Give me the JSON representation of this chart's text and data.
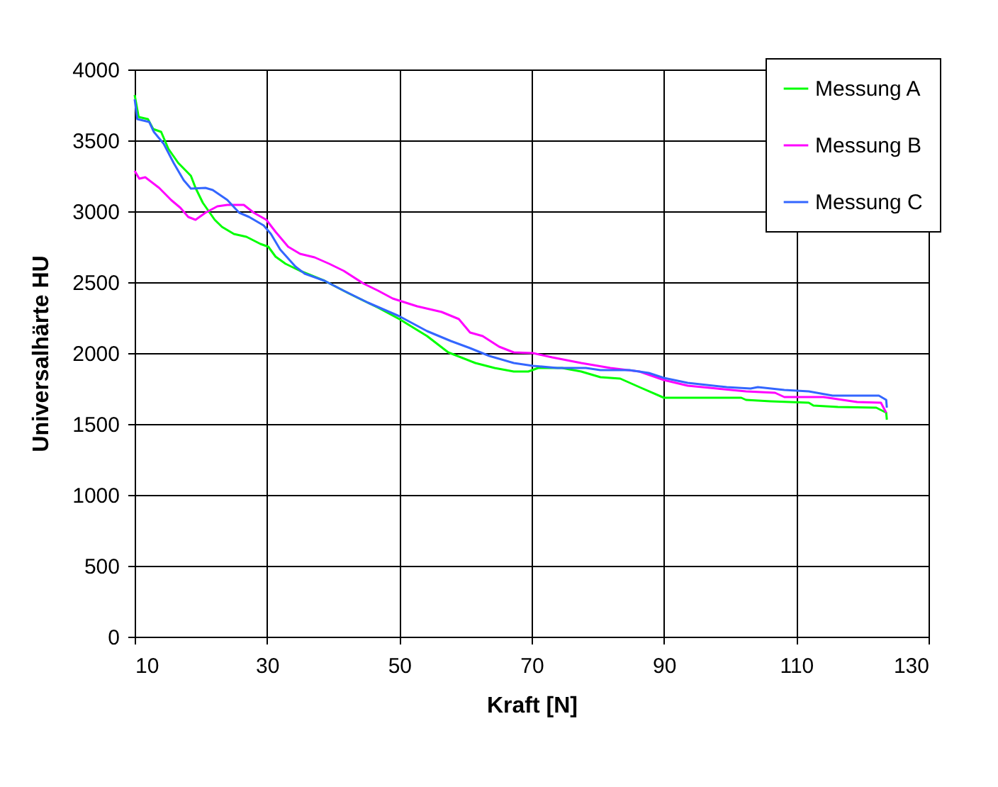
{
  "chart_data": {
    "type": "line",
    "xlabel": "Kraft [N]",
    "ylabel": "Universalhärte HU",
    "xlim": [
      10,
      130
    ],
    "xticks": [
      10,
      30,
      50,
      70,
      90,
      110,
      130
    ],
    "ylim": [
      0,
      4000
    ],
    "yticks": [
      0,
      500,
      1000,
      1500,
      2000,
      2500,
      3000,
      3500,
      4000
    ],
    "grid": true,
    "legend": "top right",
    "marker": "none",
    "line_style": "solid",
    "series": [
      {
        "name": "Messung A",
        "color": "#00ff00",
        "x": [
          10,
          10.6,
          12,
          12.8,
          14,
          15.1,
          16.6,
          18.5,
          19.2,
          20.3,
          22.1,
          23.2,
          25,
          26.9,
          29,
          30.2,
          31.3,
          32.8,
          35,
          38.7,
          42.4,
          46.8,
          50,
          54.2,
          57.4,
          61.5,
          64.4,
          67.3,
          69.5,
          71,
          74.6,
          77.5,
          80.4,
          83.4,
          86.3,
          90,
          101.7,
          102.4,
          106.1,
          111.9,
          112.6,
          116.3,
          122.1,
          123.6,
          123.7
        ],
        "values": [
          3820,
          3665,
          3650,
          3580,
          3560,
          3440,
          3340,
          3250,
          3165,
          3060,
          2940,
          2890,
          2840,
          2820,
          2770,
          2750,
          2680,
          2630,
          2580,
          2510,
          2420,
          2320,
          2240,
          2120,
          2005,
          1930,
          1895,
          1870,
          1870,
          1895,
          1895,
          1870,
          1830,
          1820,
          1760,
          1685,
          1685,
          1670,
          1660,
          1650,
          1630,
          1620,
          1615,
          1580,
          1530
        ]
      },
      {
        "name": "Messung B",
        "color": "#ff00ff",
        "x": [
          10,
          10.7,
          11.6,
          13.7,
          15.5,
          16.9,
          18.1,
          19.2,
          20.7,
          22.5,
          24,
          26.5,
          28,
          29.9,
          31.3,
          33.2,
          35,
          37.2,
          39.4,
          41.6,
          44.6,
          46.8,
          49,
          52.7,
          56.4,
          59,
          60.7,
          62.6,
          65.1,
          67.3,
          70.2,
          73.1,
          77.5,
          81.9,
          86.3,
          90,
          93.6,
          98,
          102.4,
          106.8,
          108.2,
          114.1,
          117,
          119.2,
          122.8,
          123.6
        ],
        "values": [
          3285,
          3230,
          3240,
          3165,
          3080,
          3025,
          2960,
          2940,
          2990,
          3035,
          3045,
          3045,
          2990,
          2940,
          2855,
          2750,
          2700,
          2675,
          2630,
          2580,
          2490,
          2440,
          2385,
          2330,
          2290,
          2240,
          2145,
          2120,
          2045,
          2005,
          2000,
          1970,
          1930,
          1895,
          1870,
          1810,
          1770,
          1750,
          1730,
          1720,
          1690,
          1690,
          1670,
          1655,
          1650,
          1580
        ]
      },
      {
        "name": "Messung C",
        "color": "#3366ff",
        "x": [
          10,
          10.4,
          12.2,
          12.9,
          14.4,
          15.9,
          17.4,
          18.5,
          20.7,
          21.8,
          24,
          25.8,
          27.3,
          29.5,
          30.6,
          32,
          34.3,
          35.7,
          38.7,
          41.6,
          45.3,
          50,
          54.2,
          57.8,
          60.7,
          63.6,
          67.3,
          70.2,
          73.9,
          78.2,
          80.4,
          84.8,
          87.7,
          90,
          93.6,
          99.5,
          103.1,
          104.2,
          108.2,
          111.9,
          115.5,
          122.5,
          123.6,
          123.7
        ],
        "values": [
          3790,
          3650,
          3630,
          3560,
          3475,
          3340,
          3220,
          3160,
          3165,
          3150,
          3080,
          2990,
          2960,
          2900,
          2840,
          2730,
          2610,
          2560,
          2510,
          2440,
          2355,
          2260,
          2155,
          2085,
          2035,
          1980,
          1930,
          1910,
          1895,
          1895,
          1880,
          1880,
          1860,
          1825,
          1790,
          1760,
          1750,
          1760,
          1740,
          1730,
          1700,
          1700,
          1670,
          1615
        ]
      }
    ]
  }
}
